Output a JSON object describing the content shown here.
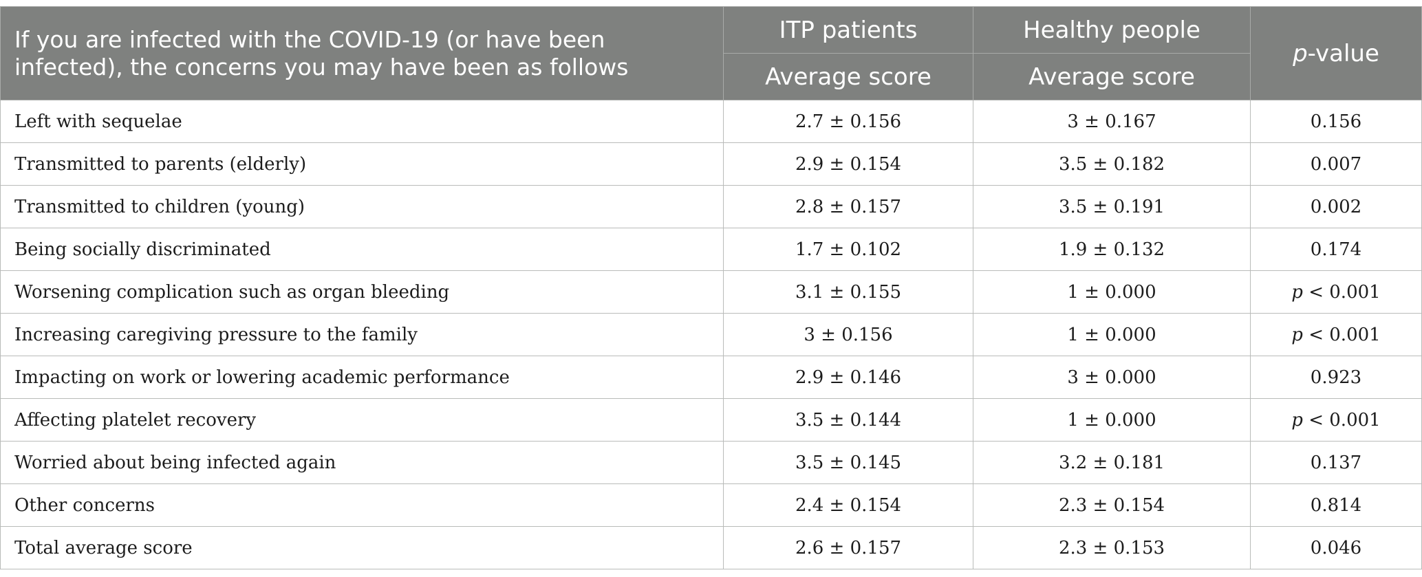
{
  "header": {
    "description": "If you are infected with the COVID-19 (or have been infected), the concerns you may have been as follows",
    "group1": "ITP patients",
    "group2": "Healthy people",
    "subheader1": "Average score",
    "subheader2": "Average score",
    "pvalue_p": "p",
    "pvalue_rest": "-value"
  },
  "rows": [
    {
      "label": "Left with sequelae",
      "itp": "2.7 ± 0.156",
      "healthy": "3 ± 0.167",
      "p_prefix": "",
      "p": "0.156"
    },
    {
      "label": "Transmitted to parents (elderly)",
      "itp": "2.9 ± 0.154",
      "healthy": "3.5 ± 0.182",
      "p_prefix": "",
      "p": "0.007"
    },
    {
      "label": "Transmitted to children (young)",
      "itp": "2.8 ± 0.157",
      "healthy": "3.5 ± 0.191",
      "p_prefix": "",
      "p": "0.002"
    },
    {
      "label": "Being socially discriminated",
      "itp": "1.7 ± 0.102",
      "healthy": "1.9 ± 0.132",
      "p_prefix": "",
      "p": "0.174"
    },
    {
      "label": "Worsening complication such as organ bleeding",
      "itp": "3.1 ± 0.155",
      "healthy": "1 ± 0.000",
      "p_prefix": "p",
      "p": " < 0.001"
    },
    {
      "label": "Increasing caregiving pressure to the family",
      "itp": "3 ± 0.156",
      "healthy": "1 ± 0.000",
      "p_prefix": "p",
      "p": " < 0.001"
    },
    {
      "label": "Impacting on work or lowering academic performance",
      "itp": "2.9 ± 0.146",
      "healthy": "3 ± 0.000",
      "p_prefix": "",
      "p": "0.923"
    },
    {
      "label": "Affecting platelet recovery",
      "itp": "3.5 ± 0.144",
      "healthy": "1 ± 0.000",
      "p_prefix": "p",
      "p": " < 0.001"
    },
    {
      "label": "Worried about being infected again",
      "itp": "3.5 ± 0.145",
      "healthy": "3.2 ± 0.181",
      "p_prefix": "",
      "p": "0.137"
    },
    {
      "label": "Other concerns",
      "itp": "2.4 ± 0.154",
      "healthy": "2.3 ± 0.154",
      "p_prefix": "",
      "p": "0.814"
    },
    {
      "label": "Total average score",
      "itp": "2.6 ± 0.157",
      "healthy": "2.3 ± 0.153",
      "p_prefix": "",
      "p": "0.046"
    }
  ],
  "colors": {
    "header_bg": "#7f817f",
    "header_text": "#ffffff",
    "body_text": "#1c1c1c",
    "border": "#b9bbb9"
  }
}
